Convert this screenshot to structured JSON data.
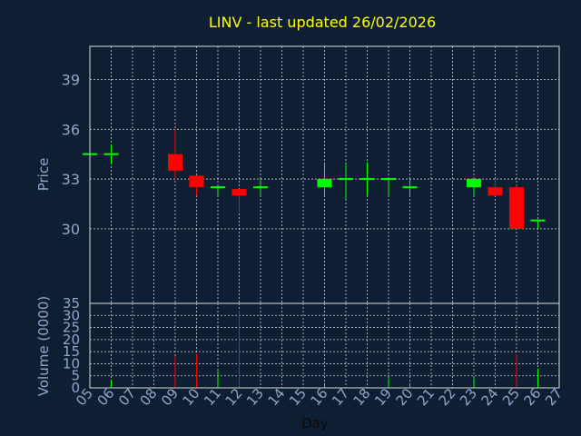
{
  "title": "LINV - last updated 26/02/2026",
  "colors": {
    "background": "#0f1f33",
    "title": "#ffff00",
    "axis_text": "#8ea7c8",
    "up": "#00ff00",
    "down": "#ff0000",
    "grid": "#ffffff"
  },
  "chart_data": [
    {
      "type": "candlestick",
      "ylabel": "Price",
      "ylim": [
        25.5,
        41
      ],
      "yticks": [
        "30",
        "33",
        "36",
        "39"
      ],
      "ytick_values": [
        30,
        33,
        36,
        39
      ],
      "grid": true,
      "candles": [
        {
          "day": "05",
          "open": 34.5,
          "high": 34.5,
          "low": 34.5,
          "close": 34.5
        },
        {
          "day": "06",
          "open": 34.5,
          "high": 35.1,
          "low": 33.9,
          "close": 34.5
        },
        {
          "day": "09",
          "open": 34.5,
          "high": 36.0,
          "low": 33.0,
          "close": 33.5
        },
        {
          "day": "10",
          "open": 33.2,
          "high": 33.2,
          "low": 32.0,
          "close": 32.5
        },
        {
          "day": "11",
          "open": 32.5,
          "high": 32.5,
          "low": 32.0,
          "close": 32.5
        },
        {
          "day": "12",
          "open": 32.4,
          "high": 32.4,
          "low": 31.0,
          "close": 32.0
        },
        {
          "day": "13",
          "open": 32.5,
          "high": 33.0,
          "low": 32.0,
          "close": 32.5
        },
        {
          "day": "16",
          "open": 32.5,
          "high": 34.0,
          "low": 32.0,
          "close": 33.0
        },
        {
          "day": "17",
          "open": 33.0,
          "high": 34.0,
          "low": 31.8,
          "close": 33.0
        },
        {
          "day": "18",
          "open": 33.0,
          "high": 34.0,
          "low": 32.0,
          "close": 33.0
        },
        {
          "day": "19",
          "open": 33.0,
          "high": 33.0,
          "low": 32.0,
          "close": 33.0
        },
        {
          "day": "20",
          "open": 32.5,
          "high": 33.0,
          "low": 32.0,
          "close": 32.5
        },
        {
          "day": "23",
          "open": 32.5,
          "high": 33.0,
          "low": 32.0,
          "close": 33.0
        },
        {
          "day": "24",
          "open": 32.5,
          "high": 33.0,
          "low": 32.0,
          "close": 32.0
        },
        {
          "day": "25",
          "open": 32.5,
          "high": 32.6,
          "low": 30.0,
          "close": 30.0
        },
        {
          "day": "26",
          "open": 30.4,
          "high": 30.5,
          "low": 30.0,
          "close": 30.5
        }
      ]
    },
    {
      "type": "bar",
      "ylabel": "Volume (0000)",
      "ylim": [
        0,
        35
      ],
      "yticks": [
        "0",
        "5",
        "10",
        "15",
        "20",
        "25",
        "30",
        "35"
      ],
      "ytick_values": [
        0,
        5,
        10,
        15,
        20,
        25,
        30,
        35
      ],
      "grid": true,
      "bars": [
        {
          "day": "06",
          "value": 3,
          "direction": "up"
        },
        {
          "day": "09",
          "value": 13,
          "direction": "down"
        },
        {
          "day": "10",
          "value": 14,
          "direction": "down"
        },
        {
          "day": "11",
          "value": 7,
          "direction": "up"
        },
        {
          "day": "12",
          "value": 32,
          "direction": "down"
        },
        {
          "day": "16",
          "value": 2,
          "direction": "up"
        },
        {
          "day": "19",
          "value": 4,
          "direction": "up"
        },
        {
          "day": "20",
          "value": 2,
          "direction": "up"
        },
        {
          "day": "23",
          "value": 4,
          "direction": "up"
        },
        {
          "day": "25",
          "value": 14,
          "direction": "down"
        },
        {
          "day": "26",
          "value": 8,
          "direction": "up"
        }
      ]
    }
  ],
  "xaxis": {
    "xlabel": "Day",
    "ticks": [
      "05",
      "06",
      "07",
      "08",
      "09",
      "10",
      "11",
      "12",
      "13",
      "14",
      "15",
      "16",
      "17",
      "18",
      "19",
      "20",
      "21",
      "22",
      "23",
      "24",
      "25",
      "26",
      "27"
    ]
  }
}
